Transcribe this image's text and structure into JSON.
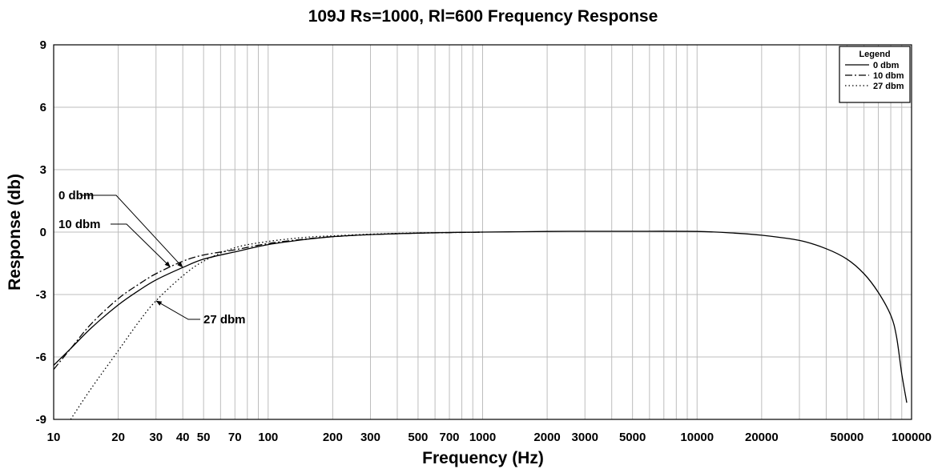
{
  "chart_data": {
    "type": "line",
    "title": "109J Rs=1000, Rl=600 Frequency Response",
    "xlabel": "Frequency (Hz)",
    "ylabel": "Response (db)",
    "xscale": "log",
    "xlim": [
      10,
      100000
    ],
    "ylim": [
      -9,
      9
    ],
    "grid": true,
    "xticks": [
      {
        "value": 10,
        "label": "10"
      },
      {
        "value": 20,
        "label": "20"
      },
      {
        "value": 30,
        "label": "30"
      },
      {
        "value": 40,
        "label": "40"
      },
      {
        "value": 50,
        "label": "50"
      },
      {
        "value": 70,
        "label": "70"
      },
      {
        "value": 100,
        "label": "100"
      },
      {
        "value": 200,
        "label": "200"
      },
      {
        "value": 300,
        "label": "300"
      },
      {
        "value": 500,
        "label": "500"
      },
      {
        "value": 700,
        "label": "700"
      },
      {
        "value": 1000,
        "label": "1000"
      },
      {
        "value": 2000,
        "label": "2000"
      },
      {
        "value": 3000,
        "label": "3000"
      },
      {
        "value": 5000,
        "label": "5000"
      },
      {
        "value": 10000,
        "label": "10000"
      },
      {
        "value": 20000,
        "label": "20000"
      },
      {
        "value": 50000,
        "label": "50000"
      },
      {
        "value": 100000,
        "label": "100000"
      }
    ],
    "yticks": [
      {
        "value": 9,
        "label": "9"
      },
      {
        "value": 6,
        "label": "6"
      },
      {
        "value": 3,
        "label": "3"
      },
      {
        "value": 0,
        "label": "0"
      },
      {
        "value": -3,
        "label": "-3"
      },
      {
        "value": -6,
        "label": "-6"
      },
      {
        "value": -9,
        "label": "-9"
      }
    ],
    "legend": {
      "title": "Legend",
      "position": "top-right",
      "entries": [
        "0 dbm",
        "10 dbm",
        "27 dbm"
      ]
    },
    "series": [
      {
        "name": "0 dbm",
        "style": "solid",
        "x": [
          10,
          12,
          15,
          20,
          25,
          30,
          40,
          50,
          70,
          100,
          150,
          200,
          300,
          500,
          700,
          1000,
          2000,
          3000,
          5000,
          10000,
          15000,
          20000,
          30000,
          40000,
          50000,
          60000,
          70000,
          80000,
          85000,
          90000,
          95000
        ],
        "y": [
          -6.4,
          -5.6,
          -4.6,
          -3.5,
          -2.8,
          -2.3,
          -1.7,
          -1.3,
          -0.95,
          -0.6,
          -0.35,
          -0.22,
          -0.12,
          -0.05,
          -0.02,
          0.0,
          0.03,
          0.04,
          0.04,
          0.03,
          -0.05,
          -0.15,
          -0.4,
          -0.8,
          -1.3,
          -2.0,
          -2.9,
          -4.0,
          -5.0,
          -6.8,
          -8.2
        ]
      },
      {
        "name": "10 dbm",
        "style": "dashdot",
        "x": [
          10,
          12,
          15,
          20,
          25,
          30,
          40,
          50,
          70,
          100,
          150,
          200,
          300,
          500,
          1000
        ],
        "y": [
          -6.6,
          -5.6,
          -4.4,
          -3.2,
          -2.5,
          -2.0,
          -1.4,
          -1.1,
          -0.85,
          -0.55,
          -0.33,
          -0.22,
          -0.12,
          -0.05,
          0.0
        ]
      },
      {
        "name": "27 dbm",
        "style": "dotted",
        "x": [
          12,
          15,
          20,
          25,
          30,
          40,
          50,
          70,
          100,
          150,
          200,
          300,
          500,
          1000
        ],
        "y": [
          -9.0,
          -7.5,
          -5.7,
          -4.3,
          -3.3,
          -2.1,
          -1.4,
          -0.75,
          -0.45,
          -0.25,
          -0.18,
          -0.1,
          -0.04,
          0.0
        ]
      }
    ],
    "annotations": [
      {
        "text": "0 dbm",
        "series": "0 dbm",
        "at_x": 40,
        "side": "upper-left"
      },
      {
        "text": "10 dbm",
        "series": "10 dbm",
        "at_x": 35,
        "side": "left"
      },
      {
        "text": "27 dbm",
        "series": "27 dbm",
        "at_x": 30,
        "side": "lower-right"
      }
    ]
  }
}
